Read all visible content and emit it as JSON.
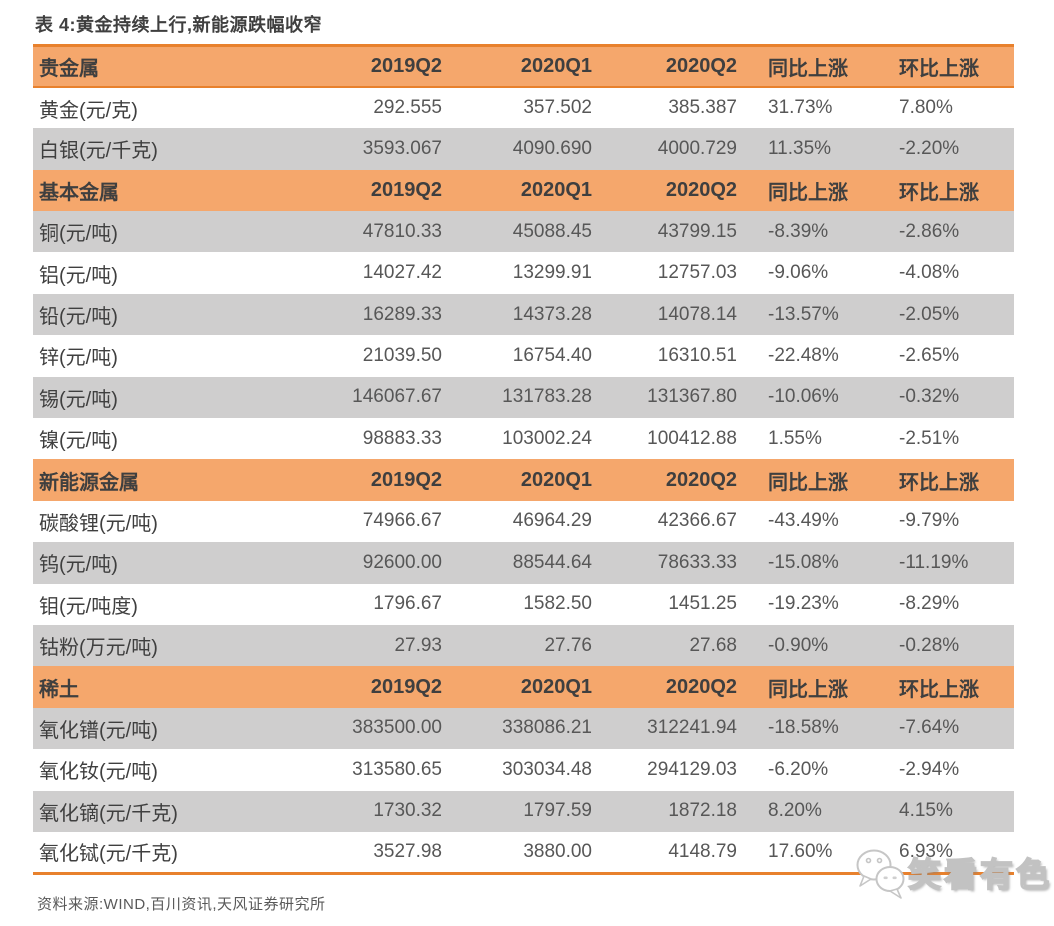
{
  "title": "表 4:黄金持续上行,新能源跌幅收窄",
  "footer": {
    "source": "资料来源:WIND,百川资讯,天风证券研究所"
  },
  "watermark": {
    "text": "笑看有色",
    "icon": "wechat-bubbles-icon"
  },
  "colors": {
    "header_bg": "#F5A76C",
    "border_orange": "#E8812D",
    "row_alt_bg": "#CFCECE",
    "label_text": "#3F3F3F",
    "value_text": "#575757"
  },
  "table": {
    "columns": [
      "2019Q2",
      "2020Q1",
      "2020Q2",
      "同比上涨",
      "环比上涨"
    ],
    "sections": [
      {
        "header": "贵金属",
        "rows": [
          {
            "label": "黄金(元/克)",
            "values": [
              "292.555",
              "357.502",
              "385.387",
              "31.73%",
              "7.80%"
            ]
          },
          {
            "label": "白银(元/千克)",
            "values": [
              "3593.067",
              "4090.690",
              "4000.729",
              "11.35%",
              "-2.20%"
            ]
          }
        ]
      },
      {
        "header": "基本金属",
        "rows": [
          {
            "label": "铜(元/吨)",
            "values": [
              "47810.33",
              "45088.45",
              "43799.15",
              "-8.39%",
              "-2.86%"
            ]
          },
          {
            "label": "铝(元/吨)",
            "values": [
              "14027.42",
              "13299.91",
              "12757.03",
              "-9.06%",
              "-4.08%"
            ]
          },
          {
            "label": "铅(元/吨)",
            "values": [
              "16289.33",
              "14373.28",
              "14078.14",
              "-13.57%",
              "-2.05%"
            ]
          },
          {
            "label": "锌(元/吨)",
            "values": [
              "21039.50",
              "16754.40",
              "16310.51",
              "-22.48%",
              "-2.65%"
            ]
          },
          {
            "label": "锡(元/吨)",
            "values": [
              "146067.67",
              "131783.28",
              "131367.80",
              "-10.06%",
              "-0.32%"
            ]
          },
          {
            "label": "镍(元/吨)",
            "values": [
              "98883.33",
              "103002.24",
              "100412.88",
              "1.55%",
              "-2.51%"
            ]
          }
        ]
      },
      {
        "header": "新能源金属",
        "rows": [
          {
            "label": "碳酸锂(元/吨)",
            "values": [
              "74966.67",
              "46964.29",
              "42366.67",
              "-43.49%",
              "-9.79%"
            ]
          },
          {
            "label": "钨(元/吨)",
            "values": [
              "92600.00",
              "88544.64",
              "78633.33",
              "-15.08%",
              "-11.19%"
            ]
          },
          {
            "label": "钼(元/吨度)",
            "values": [
              "1796.67",
              "1582.50",
              "1451.25",
              "-19.23%",
              "-8.29%"
            ]
          },
          {
            "label": "钴粉(万元/吨)",
            "values": [
              "27.93",
              "27.76",
              "27.68",
              "-0.90%",
              "-0.28%"
            ]
          }
        ]
      },
      {
        "header": "稀土",
        "rows": [
          {
            "label": "氧化镨(元/吨)",
            "values": [
              "383500.00",
              "338086.21",
              "312241.94",
              "-18.58%",
              "-7.64%"
            ]
          },
          {
            "label": "氧化钕(元/吨)",
            "values": [
              "313580.65",
              "303034.48",
              "294129.03",
              "-6.20%",
              "-2.94%"
            ]
          },
          {
            "label": "氧化镝(元/千克)",
            "values": [
              "1730.32",
              "1797.59",
              "1872.18",
              "8.20%",
              "4.15%"
            ]
          },
          {
            "label": "氧化铽(元/千克)",
            "values": [
              "3527.98",
              "3880.00",
              "4148.79",
              "17.60%",
              "6.93%"
            ]
          }
        ]
      }
    ]
  }
}
